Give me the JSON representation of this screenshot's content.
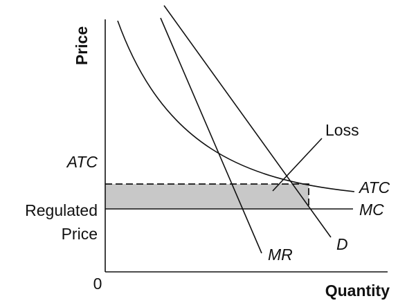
{
  "labels": {
    "y_axis": "Price",
    "x_axis": "Quantity",
    "origin": "0",
    "atc_axis": "ATC",
    "regulated_line1": "Regulated",
    "regulated_line2": "Price",
    "loss": "Loss",
    "atc_curve": "ATC",
    "mc_curve": "MC",
    "mr_curve": "MR",
    "d_curve": "D"
  },
  "colors": {
    "ink": "#111111",
    "loss_fill": "#c8c8c8"
  }
}
